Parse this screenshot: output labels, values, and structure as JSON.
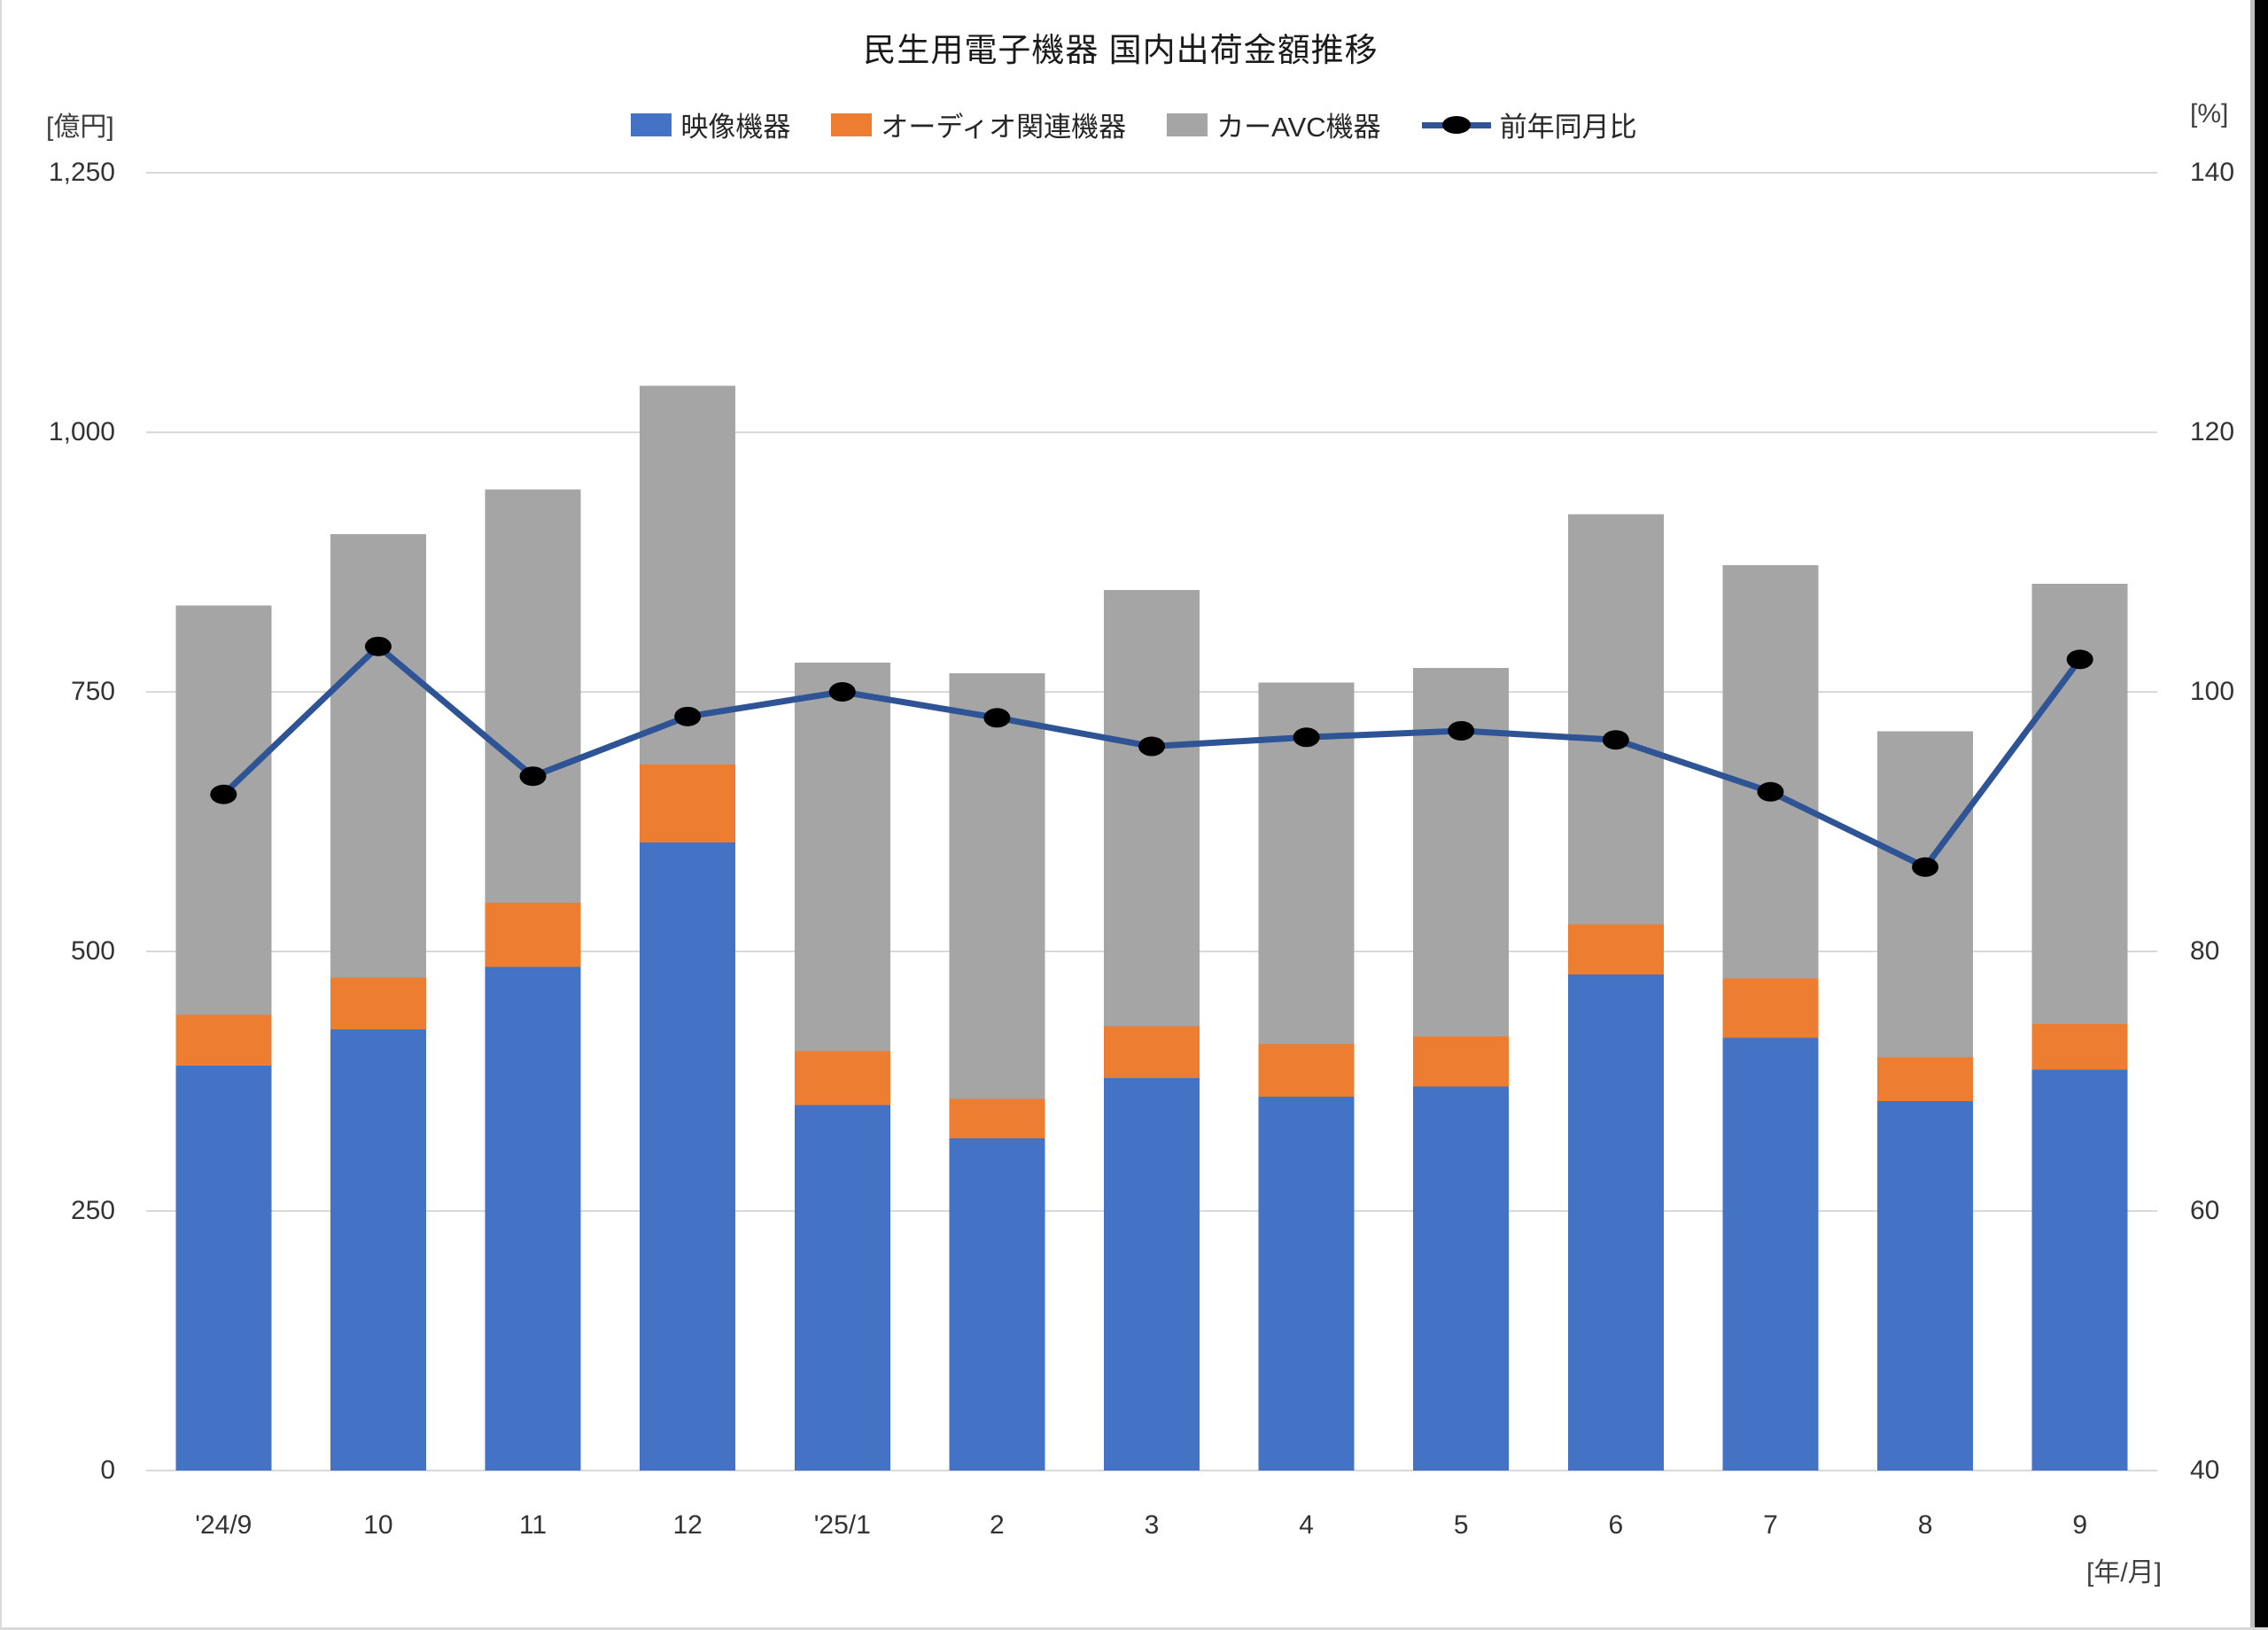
{
  "title": "民生用電子機器 国内出荷金額推移",
  "axes": {
    "left_unit": "[億円]",
    "right_unit": "[%]",
    "x_unit": "[年/月]",
    "left_ticks": [
      "1,250",
      "1,000",
      "750",
      "500",
      "250",
      "0"
    ],
    "right_ticks": [
      "140",
      "120",
      "100",
      "80",
      "60",
      "40"
    ]
  },
  "colors": {
    "bar_blue": "#4472C4",
    "bar_orange": "#ED7D31",
    "bar_gray": "#A5A5A5",
    "line": "#2F5496",
    "marker": "#000000",
    "grid": "#D9D9D9",
    "text": "#333333"
  },
  "chart_data": {
    "type": "bar",
    "subtype": "stacked-column-with-line",
    "title": "民生用電子機器 国内出荷金額推移",
    "categories": [
      "'24/9",
      "10",
      "11",
      "12",
      "'25/1",
      "2",
      "3",
      "4",
      "5",
      "6",
      "7",
      "8",
      "9"
    ],
    "series": [
      {
        "name": "映像機器",
        "type": "bar",
        "color": "#4472C4",
        "values": [
          390,
          425,
          485,
          605,
          352,
          320,
          378,
          360,
          370,
          478,
          417,
          356,
          386
        ]
      },
      {
        "name": "オーディオ関連機器",
        "type": "bar",
        "color": "#ED7D31",
        "values": [
          49,
          50,
          62,
          75,
          52,
          38,
          50,
          51,
          48,
          48,
          57,
          42,
          44
        ]
      },
      {
        "name": "カーAVC機器",
        "type": "bar",
        "color": "#A5A5A5",
        "values": [
          394,
          427,
          398,
          365,
          374,
          410,
          420,
          348,
          355,
          395,
          398,
          314,
          424
        ]
      },
      {
        "name": "前年同月比",
        "type": "line",
        "axis": "right",
        "color": "#2F5496",
        "marker": "#000000",
        "values": [
          92.1,
          103.5,
          93.5,
          98.1,
          100.0,
          98.0,
          95.8,
          96.5,
          97.0,
          96.3,
          92.3,
          86.5,
          102.5
        ]
      }
    ],
    "stacked_totals": [
      833,
      902,
      945,
      1045,
      778,
      768,
      848,
      759,
      773,
      921,
      872,
      712,
      854
    ],
    "left_axis": {
      "label": "[億円]",
      "min": 0,
      "max": 1250,
      "step": 250
    },
    "right_axis": {
      "label": "[%]",
      "min": 40,
      "max": 140,
      "step": 20
    },
    "x_label": "[年/月]",
    "grid": true,
    "legend_position": "top"
  }
}
